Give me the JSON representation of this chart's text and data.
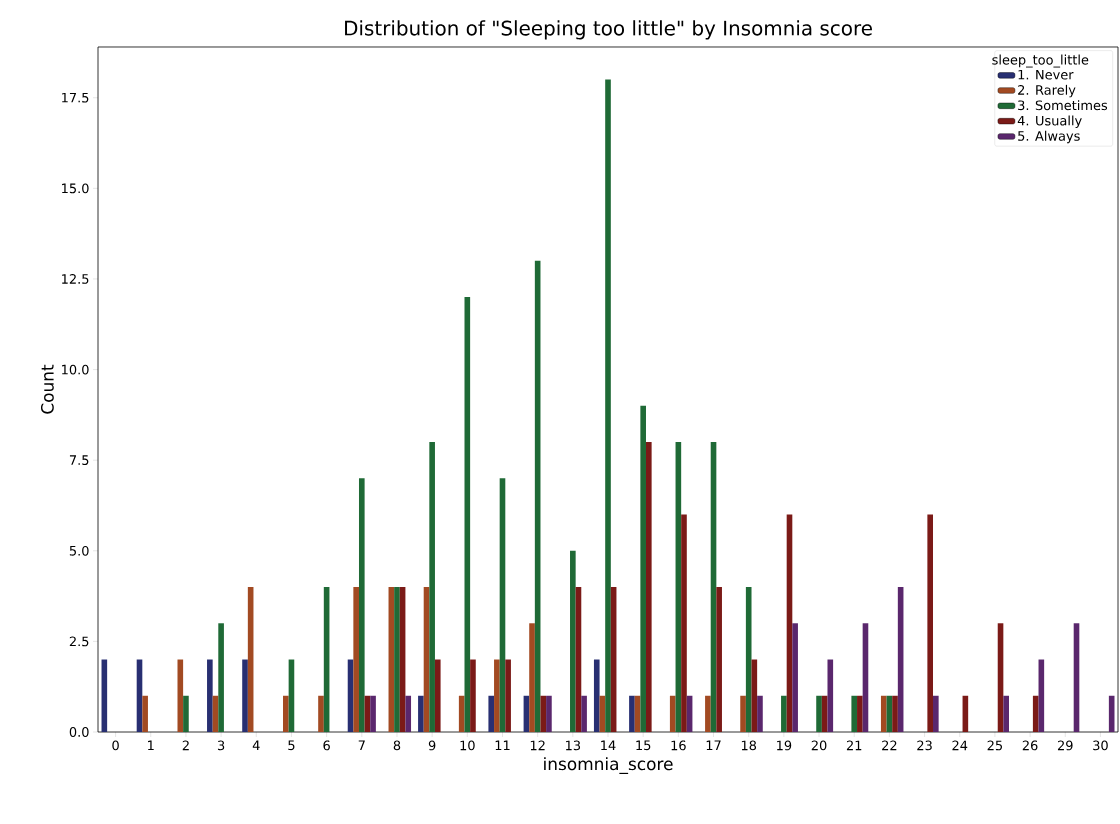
{
  "chart_data": {
    "type": "bar",
    "title": "Distribution of \"Sleeping too little\" by Insomnia score",
    "xlabel": "insomnia_score",
    "ylabel": "Count",
    "legend_title": "sleep_too_little",
    "categories": [
      "0",
      "1",
      "2",
      "3",
      "4",
      "5",
      "6",
      "7",
      "8",
      "9",
      "10",
      "11",
      "12",
      "13",
      "14",
      "15",
      "16",
      "17",
      "18",
      "19",
      "20",
      "21",
      "22",
      "23",
      "24",
      "25",
      "26",
      "29",
      "30"
    ],
    "series": [
      {
        "name": "1. Never",
        "color": "#282f72",
        "values": [
          2,
          2,
          null,
          2,
          2,
          null,
          null,
          2,
          null,
          1,
          null,
          1,
          1,
          null,
          2,
          1,
          null,
          null,
          null,
          null,
          null,
          null,
          null,
          null,
          null,
          null,
          null,
          null,
          null
        ]
      },
      {
        "name": "2. Rarely",
        "color": "#a24a22",
        "values": [
          null,
          1,
          2,
          1,
          4,
          1,
          1,
          4,
          4,
          4,
          1,
          2,
          3,
          null,
          1,
          1,
          1,
          1,
          1,
          null,
          null,
          null,
          1,
          null,
          null,
          null,
          null,
          null,
          null
        ]
      },
      {
        "name": "3. Sometimes",
        "color": "#1f6a36",
        "values": [
          null,
          null,
          1,
          3,
          null,
          2,
          4,
          7,
          4,
          8,
          12,
          7,
          13,
          5,
          18,
          9,
          8,
          8,
          4,
          1,
          1,
          1,
          1,
          null,
          null,
          null,
          null,
          null,
          null
        ]
      },
      {
        "name": "4. Usually",
        "color": "#7b1a17",
        "values": [
          null,
          null,
          null,
          null,
          null,
          null,
          null,
          1,
          4,
          2,
          2,
          2,
          1,
          4,
          4,
          8,
          6,
          4,
          2,
          6,
          1,
          1,
          1,
          6,
          1,
          3,
          1,
          null,
          null
        ]
      },
      {
        "name": "5. Always",
        "color": "#5a276d",
        "values": [
          null,
          null,
          null,
          null,
          null,
          null,
          null,
          1,
          1,
          null,
          null,
          null,
          1,
          1,
          null,
          null,
          1,
          null,
          1,
          3,
          2,
          3,
          4,
          1,
          null,
          1,
          2,
          3,
          1
        ]
      }
    ],
    "ylim": [
      0,
      18.9
    ],
    "yticks": [
      {
        "value": 0,
        "label": "0.0"
      },
      {
        "value": 2.5,
        "label": "2.5"
      },
      {
        "value": 5,
        "label": "5.0"
      },
      {
        "value": 7.5,
        "label": "7.5"
      },
      {
        "value": 10,
        "label": "10.0"
      },
      {
        "value": 12.5,
        "label": "12.5"
      },
      {
        "value": 15,
        "label": "15.0"
      },
      {
        "value": 17.5,
        "label": "17.5"
      }
    ],
    "legend": "top right",
    "grid": false
  }
}
